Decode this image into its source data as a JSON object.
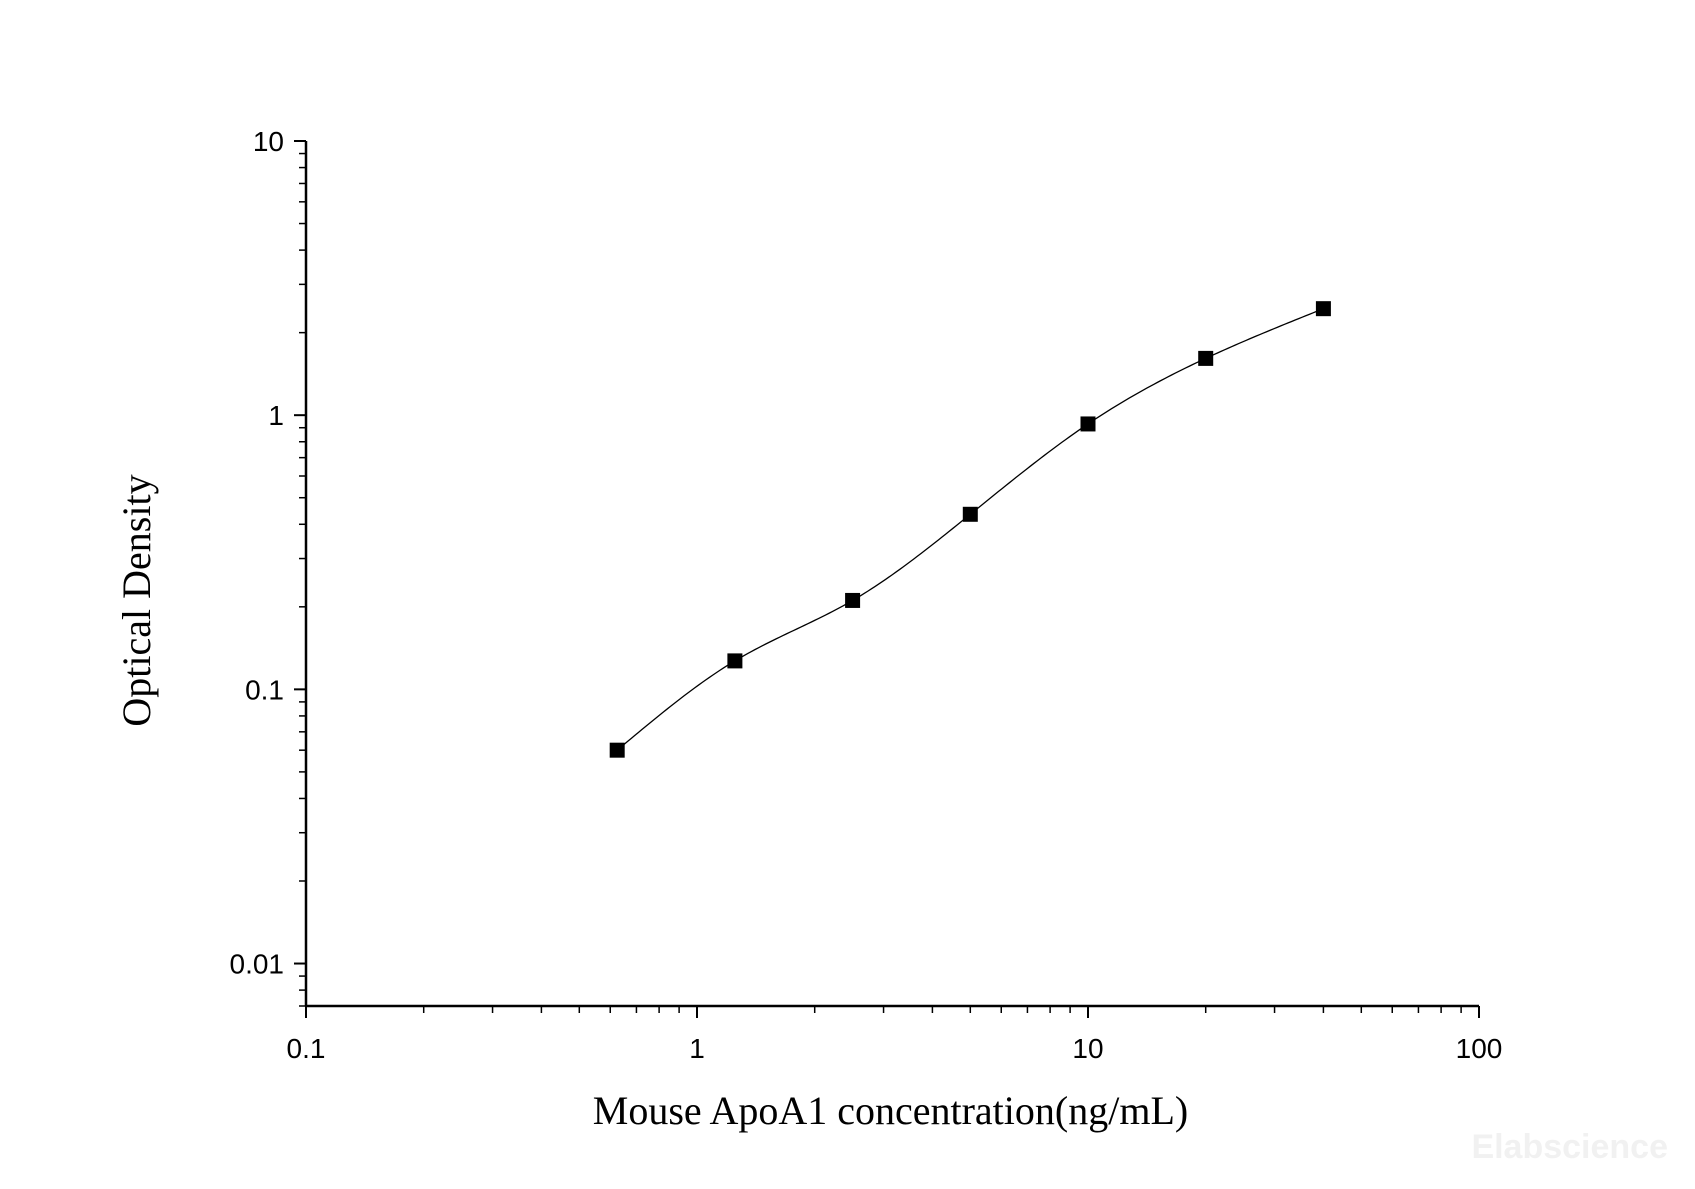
{
  "chart_data": {
    "type": "scatter",
    "x_scale": "log",
    "y_scale": "log",
    "xlabel": "Mouse ApoA1 concentration(ng/mL)",
    "ylabel": "Optical Density",
    "xlim": [
      0.1,
      100
    ],
    "ylim": [
      0.007,
      10
    ],
    "x_ticks": [
      "0.1",
      "1",
      "10",
      "100"
    ],
    "y_ticks": [
      "10",
      "1",
      "0.1",
      "0.01"
    ],
    "grid": false,
    "legend": "none",
    "series": [
      {
        "marker": "square",
        "color": "#000000",
        "points": [
          {
            "x": 0.625,
            "y": 0.06
          },
          {
            "x": 1.25,
            "y": 0.127
          },
          {
            "x": 2.5,
            "y": 0.211
          },
          {
            "x": 5,
            "y": 0.435
          },
          {
            "x": 10,
            "y": 0.929
          },
          {
            "x": 20,
            "y": 1.611
          },
          {
            "x": 40,
            "y": 2.446
          }
        ]
      }
    ],
    "fit_curve": {
      "type": "smooth",
      "color": "#000000",
      "x_range": [
        0.625,
        40
      ]
    }
  },
  "watermark": "Elabscience"
}
